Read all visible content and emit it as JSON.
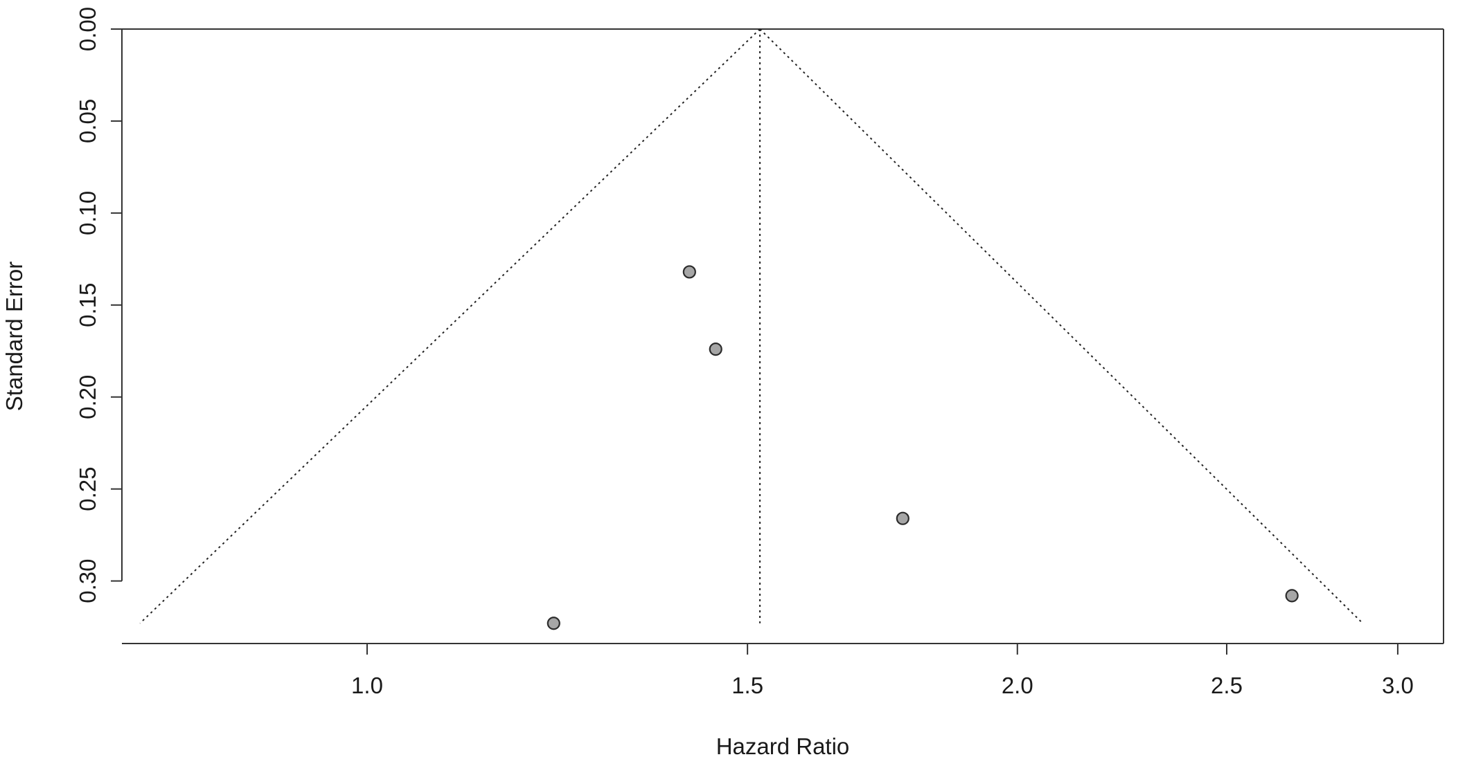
{
  "chart_data": {
    "type": "scatter",
    "subtype": "funnel plot",
    "title": "",
    "xlabel": "Hazard Ratio",
    "ylabel": "Standard Error",
    "x_scale": "log",
    "x_ticks": [
      1.0,
      1.5,
      2.0,
      2.5,
      3.0
    ],
    "x_tick_labels": [
      "1.0",
      "1.5",
      "2.0",
      "2.5",
      "3.0"
    ],
    "xlim": [
      0.77,
      3.15
    ],
    "y_ticks": [
      0.0,
      0.05,
      0.1,
      0.15,
      0.2,
      0.25,
      0.3
    ],
    "y_tick_labels": [
      "0.00",
      "0.05",
      "0.10",
      "0.15",
      "0.20",
      "0.25",
      "0.30"
    ],
    "ylim": [
      0.334,
      0.0
    ],
    "y_reversed": true,
    "pooled_estimate": 1.52,
    "funnel_bottom_se": 0.323,
    "funnel_x_range": [
      0.785,
      2.89
    ],
    "points": [
      {
        "x": 1.22,
        "y": 0.323
      },
      {
        "x": 1.41,
        "y": 0.132
      },
      {
        "x": 1.45,
        "y": 0.174
      },
      {
        "x": 1.77,
        "y": 0.266
      },
      {
        "x": 2.68,
        "y": 0.308
      }
    ],
    "grid": false,
    "legend": "none",
    "colors": {
      "point_fill": "#a6a6a6",
      "point_stroke": "#2b2b2b",
      "line": "#333333",
      "background": "#ffffff"
    }
  }
}
